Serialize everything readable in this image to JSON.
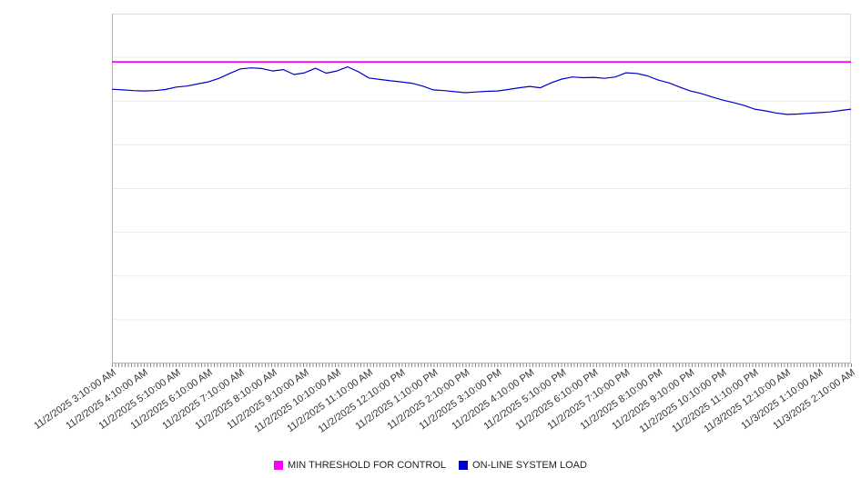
{
  "chart": {
    "colors": {
      "threshold": "#ff00ff",
      "load": "#0000cd",
      "grid": "#ececec",
      "plot_border": "#dcdcdc",
      "axis": "#b3b3b3",
      "tick": "#8c8c8c",
      "label_text": "#333333",
      "background": "#ffffff"
    },
    "legend": [
      {
        "label": "MIN THRESHOLD FOR CONTROL",
        "color": "#ff00ff"
      },
      {
        "label": "ON-LINE SYSTEM LOAD",
        "color": "#0000cd"
      }
    ]
  },
  "chart_data": {
    "type": "line",
    "title": "",
    "xlabel": "",
    "ylabel": "",
    "ylim": [
      0,
      100
    ],
    "grid": "horizontal",
    "gridline_count": 7,
    "legend_position": "bottom",
    "x_labels": [
      "11/2/2025 3:10:00 AM",
      "11/2/2025 4:10:00 AM",
      "11/2/2025 5:10:00 AM",
      "11/2/2025 6:10:00 AM",
      "11/2/2025 7:10:00 AM",
      "11/2/2025 8:10:00 AM",
      "11/2/2025 9:10:00 AM",
      "11/2/2025 10:10:00 AM",
      "11/2/2025 11:10:00 AM",
      "11/2/2025 12:10:00 PM",
      "11/2/2025 1:10:00 PM",
      "11/2/2025 2:10:00 PM",
      "11/2/2025 3:10:00 PM",
      "11/2/2025 4:10:00 PM",
      "11/2/2025 5:10:00 PM",
      "11/2/2025 6:10:00 PM",
      "11/2/2025 7:10:00 PM",
      "11/2/2025 8:10:00 PM",
      "11/2/2025 9:10:00 PM",
      "11/2/2025 10:10:00 PM",
      "11/2/2025 11:10:00 PM",
      "11/3/2025 12:10:00 AM",
      "11/3/2025 1:10:00 AM",
      "11/3/2025 2:10:00 AM"
    ],
    "series": [
      {
        "name": "MIN THRESHOLD FOR CONTROL",
        "type": "threshold",
        "color": "#ff00ff",
        "value": 86.2
      },
      {
        "name": "ON-LINE SYSTEM LOAD",
        "type": "line",
        "color": "#0000cd",
        "points_per_label_interval": 3,
        "values": [
          78.4,
          78.2,
          78.0,
          77.9,
          78.0,
          78.3,
          79.0,
          79.3,
          79.9,
          80.5,
          81.5,
          82.9,
          84.2,
          84.5,
          84.3,
          83.6,
          84.0,
          82.6,
          83.1,
          84.4,
          83.0,
          83.6,
          84.8,
          83.4,
          81.6,
          81.2,
          80.8,
          80.5,
          80.1,
          79.3,
          78.2,
          78.0,
          77.7,
          77.4,
          77.6,
          77.8,
          77.9,
          78.3,
          78.8,
          79.2,
          78.8,
          80.2,
          81.3,
          81.9,
          81.7,
          81.8,
          81.5,
          81.9,
          83.1,
          82.9,
          82.2,
          81.0,
          80.2,
          79.0,
          77.9,
          77.2,
          76.2,
          75.3,
          74.6,
          73.8,
          72.7,
          72.2,
          71.6,
          71.2,
          71.3,
          71.5,
          71.7,
          71.9,
          72.3,
          72.7
        ]
      }
    ]
  }
}
